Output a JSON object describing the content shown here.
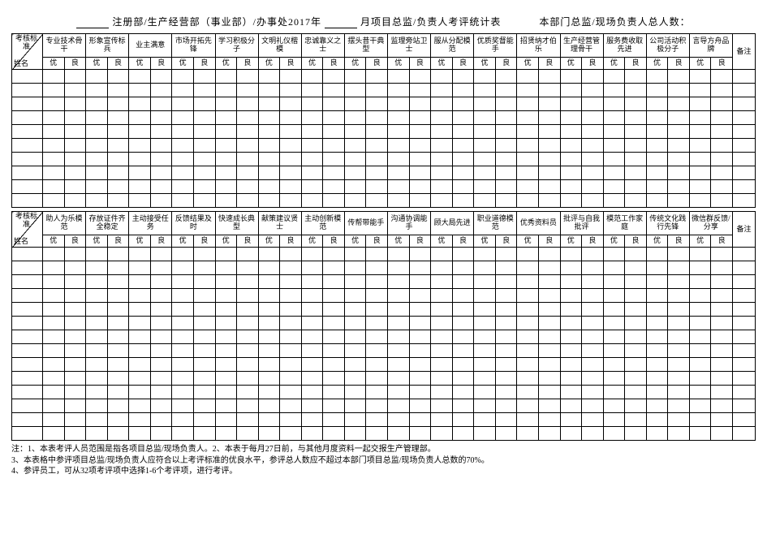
{
  "title": {
    "prefix_blank": " ",
    "part1": "注册部/生产经营部（事业部）/办事处2017年",
    "blank2": " ",
    "part2": "月项目总监/负责人考评统计表",
    "spacer": "　　　",
    "part3": "本部门总监/现场负责人总人数："
  },
  "corner": {
    "top": "考核标准",
    "bottom": "姓名"
  },
  "subs": {
    "a": "优",
    "b": "良"
  },
  "beizhu": "备注",
  "table1_categories": [
    "专业技术骨干",
    "形象宣传标兵",
    "业主满意",
    "市场开拓先锋",
    "学习积极分子",
    "文明礼仪楷模",
    "忠诚靠义之士",
    "摆头昔干典型",
    "监理旁站卫士",
    "服从分配模范",
    "优质奖督能手",
    "招贤纳才伯乐",
    "生产经营管理骨干",
    "服务费收取先进",
    "公司活动积极分子",
    "言导方舟品牌"
  ],
  "table2_categories": [
    "助人为乐模范",
    "存放证件齐全稳定",
    "主动接受任务",
    "反馈结果及时",
    "快速成长典型",
    "献策建议贤士",
    "主动创新模范",
    "传帮带能手",
    "沟通协调能手",
    "顾大局先进",
    "职业道德模范",
    "优秀资料员",
    "批评与自我批评",
    "模范工作家庭",
    "传统文化践行先锋",
    "微信群反馈/分享"
  ],
  "table1_rows": 10,
  "table2_rows": 14,
  "notes": [
    "注：1、本表考评人员范围是指各项目总监/现场负责人。2、本表于每月27日前，与其他月度资料一起交报生产管理部。",
    "3、本表格中参评项目总监/现场负责人应符合以上考评标准的优良水平，参评总人数应不超过本部门项目总监/现场负责人总数的70%。",
    "4、参评员工，可从32项考评项中选择1-6个考评项，进行考评。"
  ]
}
